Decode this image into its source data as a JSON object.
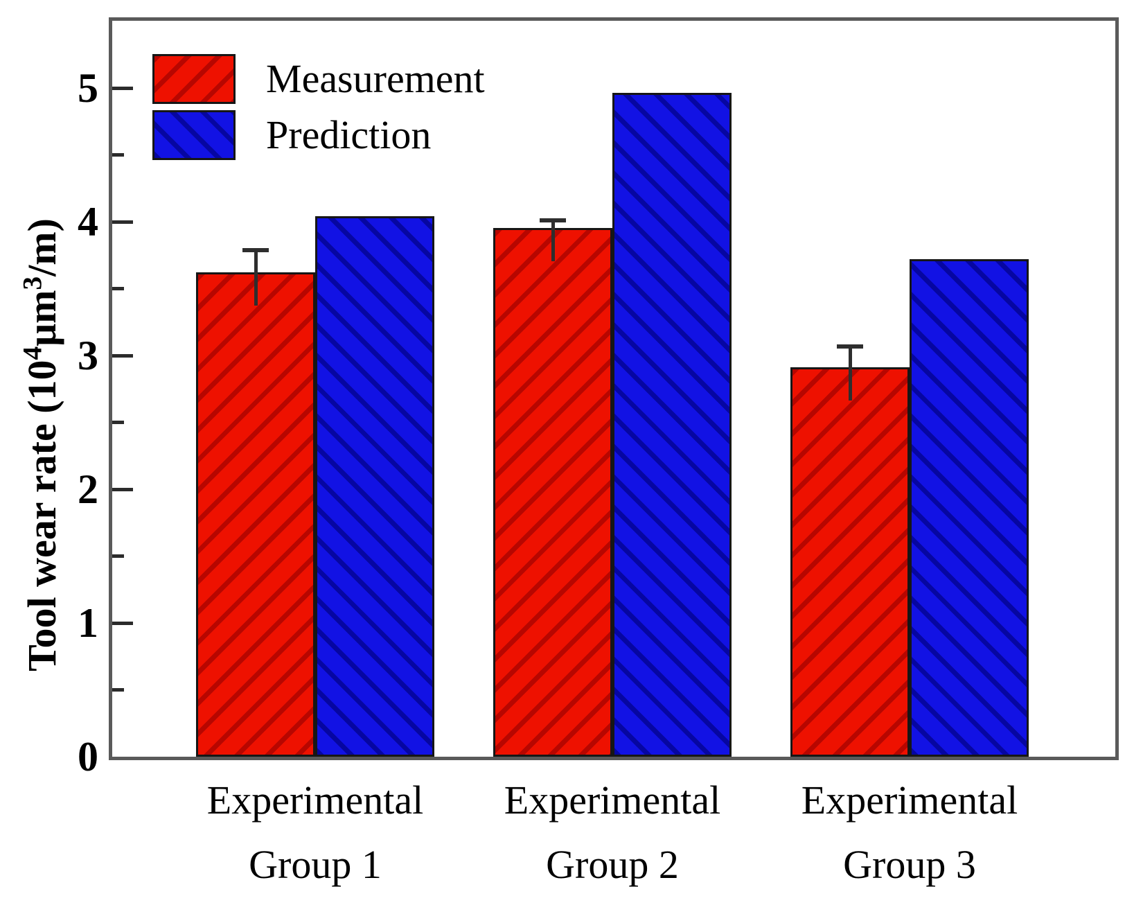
{
  "figure": {
    "background": "#ffffff",
    "text_color": "#000000",
    "axis_color": "#5a5a5a",
    "tick_color": "#2b2b2b",
    "errorbar_color": "#2e2e2e"
  },
  "chart_data": {
    "type": "bar",
    "title": "",
    "categories": [
      "Experimental Group 1",
      "Experimental Group 2",
      "Experimental Group 3"
    ],
    "category_lines": [
      [
        "Experimental",
        "Group 1"
      ],
      [
        "Experimental",
        "Group 2"
      ],
      [
        "Experimental",
        "Group 3"
      ]
    ],
    "series": [
      {
        "name": "Measurement",
        "values": [
          3.62,
          3.95,
          2.91
        ],
        "errors": [
          0.15,
          0.04,
          0.14
        ],
        "color": "#ee1100",
        "hatch": "/",
        "hatch_color": "#9c0000"
      },
      {
        "name": "Prediction",
        "values": [
          4.04,
          4.96,
          3.72
        ],
        "errors": [
          0,
          0,
          0
        ],
        "color": "#1212e4",
        "hatch": "\\",
        "hatch_color": "#000080"
      }
    ],
    "xlabel": "",
    "ylabel": "Tool wear rate (10⁴μm³/m)",
    "ylabel_segments": [
      {
        "t": "Tool wear rate  (10",
        "sup": false
      },
      {
        "t": "4",
        "sup": true
      },
      {
        "t": "μm",
        "sup": false
      },
      {
        "t": "3",
        "sup": true
      },
      {
        "t": "/m)",
        "sup": false
      }
    ],
    "ylim": [
      0,
      5.5
    ],
    "yticks": [
      "0",
      "1",
      "2",
      "3",
      "4",
      "5"
    ],
    "yminor_ticks": [
      0.5,
      1.5,
      2.5,
      3.5,
      4.5
    ],
    "grid": false,
    "legend_position": "upper-left"
  }
}
